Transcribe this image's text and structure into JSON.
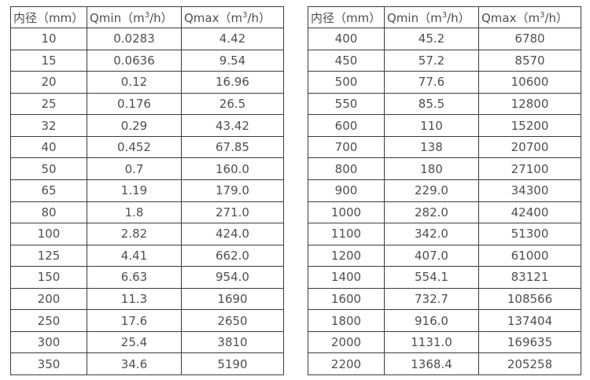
{
  "colors": {
    "background": "#ffffff",
    "table_border": "#3c3c3c",
    "table_text": "#4f4f4f"
  },
  "chart_data": [
    {
      "type": "table",
      "name": "flow-table-small-diameters",
      "columns": [
        "内径（mm）",
        "Qmin（m³/h）",
        "Qmax（m³/h）"
      ],
      "rows": [
        [
          "10",
          "0.0283",
          "4.42"
        ],
        [
          "15",
          "0.0636",
          "9.54"
        ],
        [
          "20",
          "0.12",
          "16.96"
        ],
        [
          "25",
          "0.176",
          "26.5"
        ],
        [
          "32",
          "0.29",
          "43.42"
        ],
        [
          "40",
          "0.452",
          "67.85"
        ],
        [
          "50",
          "0.7",
          "160.0"
        ],
        [
          "65",
          "1.19",
          "179.0"
        ],
        [
          "80",
          "1.8",
          "271.0"
        ],
        [
          "100",
          "2.82",
          "424.0"
        ],
        [
          "125",
          "4.41",
          "662.0"
        ],
        [
          "150",
          "6.63",
          "954.0"
        ],
        [
          "200",
          "11.3",
          "1690"
        ],
        [
          "250",
          "17.6",
          "2650"
        ],
        [
          "300",
          "25.4",
          "3810"
        ],
        [
          "350",
          "34.6",
          "5190"
        ]
      ]
    },
    {
      "type": "table",
      "name": "flow-table-large-diameters",
      "columns": [
        "内径（mm）",
        "Qmin（m³/h）",
        "Qmax（m³/h）"
      ],
      "rows": [
        [
          "400",
          "45.2",
          "6780"
        ],
        [
          "450",
          "57.2",
          "8570"
        ],
        [
          "500",
          "77.6",
          "10600"
        ],
        [
          "550",
          "85.5",
          "12800"
        ],
        [
          "600",
          "110",
          "15200"
        ],
        [
          "700",
          "138",
          "20700"
        ],
        [
          "800",
          "180",
          "27100"
        ],
        [
          "900",
          "229.0",
          "34300"
        ],
        [
          "1000",
          "282.0",
          "42400"
        ],
        [
          "1100",
          "342.0",
          "51300"
        ],
        [
          "1200",
          "407.0",
          "61000"
        ],
        [
          "1400",
          "554.1",
          "83121"
        ],
        [
          "1600",
          "732.7",
          "108566"
        ],
        [
          "1800",
          "916.0",
          "137404"
        ],
        [
          "2000",
          "1131.0",
          "169635"
        ],
        [
          "2200",
          "1368.4",
          "205258"
        ]
      ]
    }
  ]
}
